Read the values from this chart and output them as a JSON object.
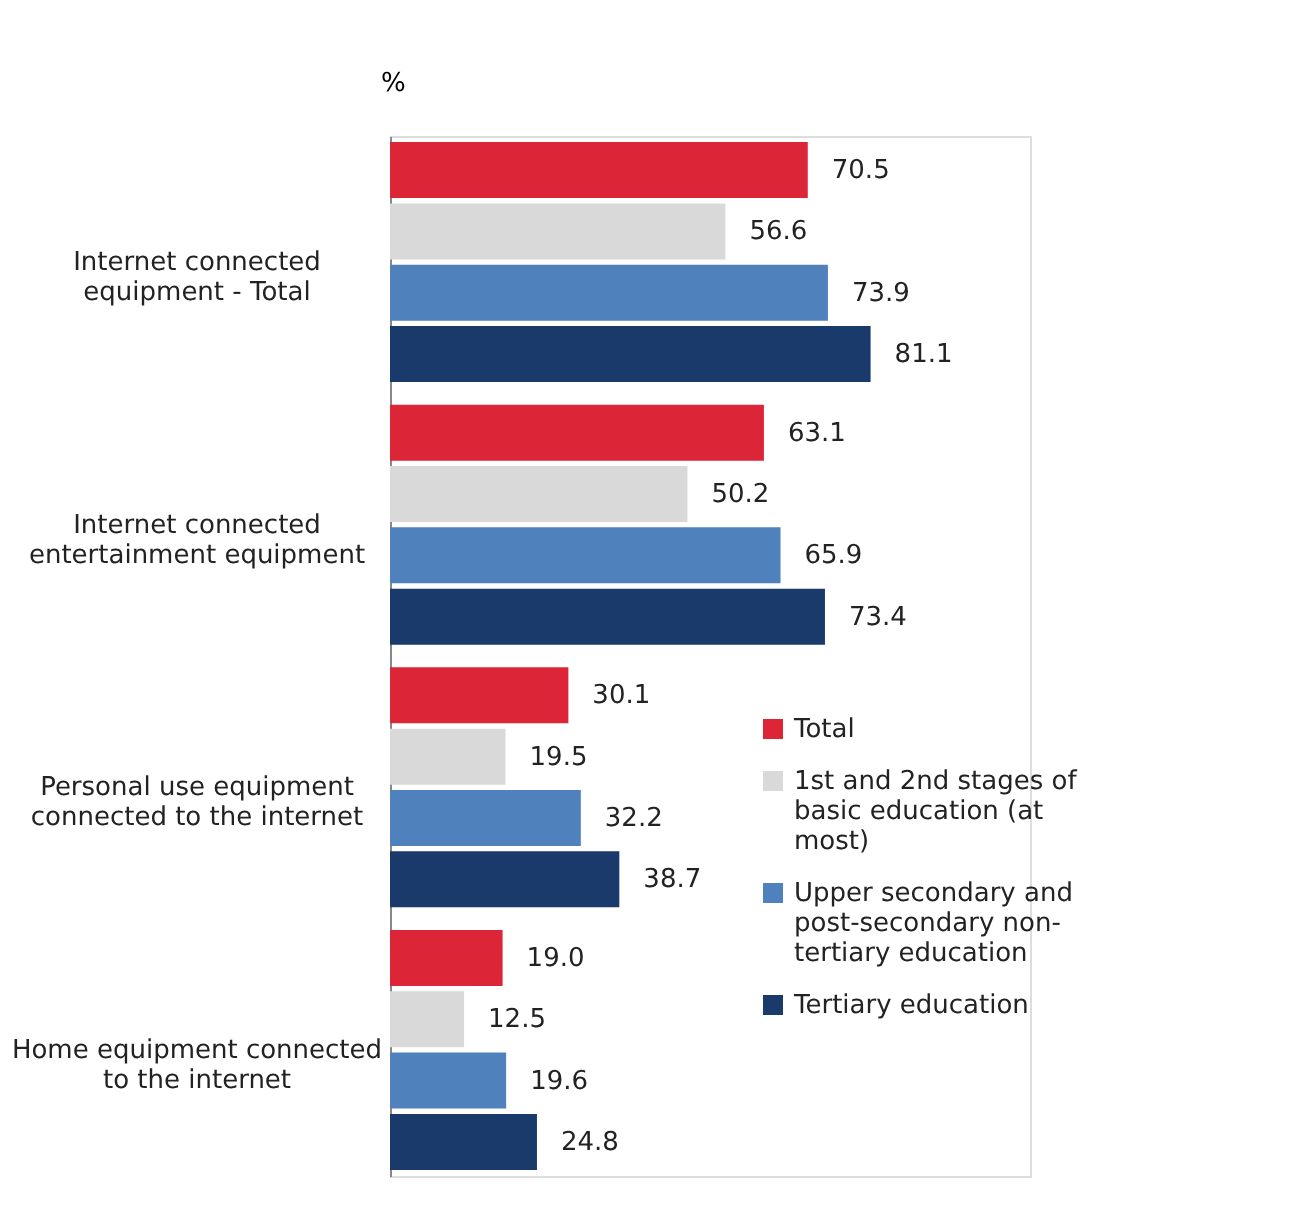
{
  "chart_data": {
    "type": "bar",
    "orientation": "horizontal",
    "ylabel": "%",
    "categories": [
      "Internet connected equipment - Total",
      "Internet connected entertainment equipment",
      "Personal use equipment connected to the internet",
      "Home equipment connected to the internet"
    ],
    "series": [
      {
        "name": "Total",
        "color": "#dc2638",
        "values": [
          70.5,
          63.1,
          30.1,
          19.0
        ],
        "value_labels": [
          "70.5",
          "63.1",
          "30.1",
          "19.0"
        ]
      },
      {
        "name": "1st and 2nd stages of basic education (at most)",
        "color": "#d9d9d9",
        "values": [
          56.6,
          50.2,
          19.5,
          12.5
        ],
        "value_labels": [
          "56.6",
          "50.2",
          "19.5",
          "12.5"
        ]
      },
      {
        "name": "Upper secondary and post-secondary non-tertiary education",
        "color": "#4f81bd",
        "values": [
          73.9,
          65.9,
          32.2,
          19.6
        ],
        "value_labels": [
          "73.9",
          "65.9",
          "32.2",
          "19.6"
        ]
      },
      {
        "name": "Tertiary education",
        "color": "#1a3a6c",
        "values": [
          81.1,
          73.4,
          38.7,
          24.8
        ],
        "value_labels": [
          "81.1",
          "73.4",
          "38.7",
          "24.8"
        ]
      }
    ],
    "data_labels": true,
    "xlim": [
      0,
      108
    ],
    "tick_labels": "y",
    "legend": "bottom right"
  }
}
